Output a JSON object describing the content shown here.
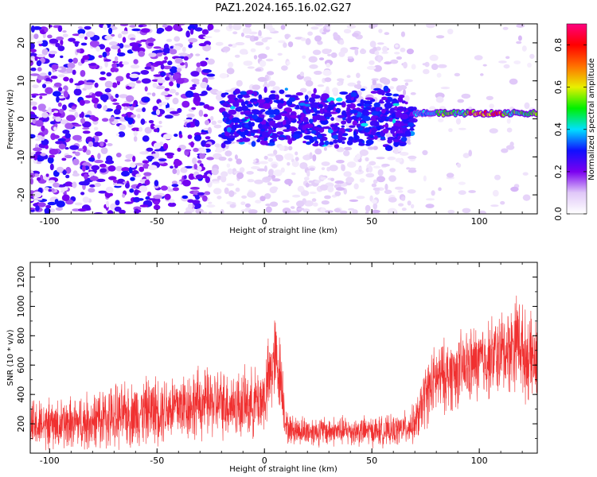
{
  "title": "PAZ1.2024.165.16.02.G27",
  "chart_data": [
    {
      "type": "heatmap",
      "xlabel": "Height of straight line (km)",
      "ylabel": "Frequency (Hz)",
      "xlim": [
        -109,
        127
      ],
      "ylim": [
        -25,
        25
      ],
      "xticks": [
        -100,
        -50,
        0,
        50,
        100
      ],
      "yticks": [
        -20,
        -10,
        0,
        10,
        20
      ],
      "colorbar": {
        "label": "Normalized spectral amplitude",
        "range": [
          0.0,
          0.9
        ],
        "ticks": [
          0.0,
          0.2,
          0.4,
          0.6,
          0.8
        ],
        "colormap": [
          "#ffffff",
          "#e0c8f8",
          "#7b00f0",
          "#1010ff",
          "#00e0ff",
          "#00f000",
          "#e8f000",
          "#ff7000",
          "#ff0000",
          "#ff0080"
        ]
      },
      "signal_band": {
        "noisy_region_x": [
          -109,
          -25
        ],
        "scintillation_region_x": [
          -20,
          70
        ],
        "clean_region_x": [
          70,
          127
        ],
        "scintillation_center_hz": 0,
        "clean_center_hz": 1.5
      }
    },
    {
      "type": "line",
      "xlabel": "Height of straight line (km)",
      "ylabel": "SNR (10 * v/v)",
      "xlim": [
        -109,
        127
      ],
      "ylim": [
        0,
        1300
      ],
      "xticks": [
        -100,
        -50,
        0,
        50,
        100
      ],
      "yticks": [
        200,
        400,
        600,
        800,
        1000,
        1200
      ],
      "series_color": "#f03030",
      "profile": {
        "x": [
          -109,
          -100,
          -90,
          -80,
          -70,
          -60,
          -50,
          -40,
          -30,
          -20,
          -10,
          -5,
          0,
          3,
          5,
          8,
          10,
          12,
          20,
          30,
          40,
          50,
          60,
          65,
          70,
          73,
          75,
          80,
          90,
          100,
          110,
          115,
          118,
          120,
          122,
          125,
          127
        ],
        "baseline": [
          180,
          190,
          200,
          220,
          240,
          270,
          300,
          320,
          340,
          340,
          330,
          340,
          380,
          550,
          650,
          500,
          180,
          160,
          150,
          150,
          150,
          150,
          150,
          170,
          200,
          300,
          400,
          500,
          560,
          620,
          680,
          720,
          800,
          700,
          650,
          640,
          600
        ],
        "amplitude": [
          180,
          170,
          180,
          200,
          210,
          220,
          230,
          240,
          240,
          230,
          230,
          230,
          250,
          300,
          300,
          250,
          110,
          100,
          100,
          100,
          100,
          100,
          100,
          110,
          130,
          180,
          220,
          240,
          250,
          260,
          280,
          300,
          320,
          300,
          290,
          280,
          270
        ]
      }
    }
  ]
}
